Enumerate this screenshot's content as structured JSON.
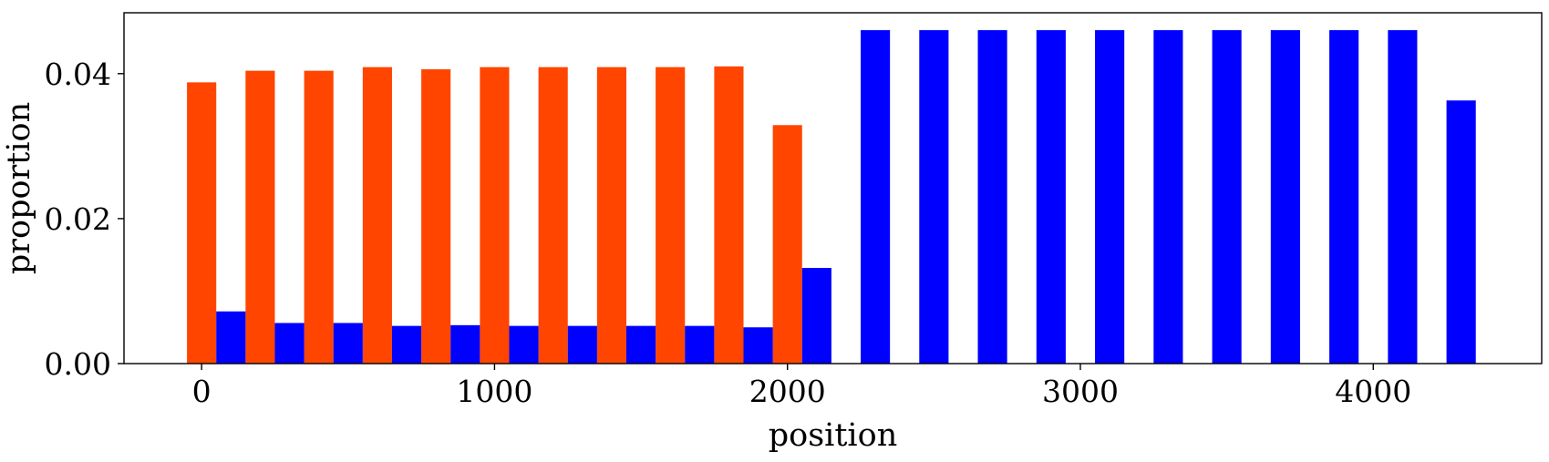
{
  "chart_data": {
    "type": "bar",
    "xlabel": "position",
    "ylabel": "proportion",
    "title": "",
    "xlim": [
      -265,
      4575
    ],
    "ylim": [
      0,
      0.0484
    ],
    "xticks": [
      0,
      1000,
      2000,
      3000,
      4000
    ],
    "xtick_labels": [
      "0",
      "1000",
      "2000",
      "3000",
      "4000"
    ],
    "yticks": [
      0,
      0.02,
      0.04
    ],
    "ytick_labels": [
      "0.00",
      "0.02",
      "0.04"
    ],
    "grid": false,
    "legend": "none",
    "bar_width": 100,
    "series": [
      {
        "color": "#ff4500",
        "x": [
          0,
          200,
          400,
          600,
          800,
          1000,
          1200,
          1400,
          1600,
          1800,
          2000
        ],
        "values": [
          0.0388,
          0.0404,
          0.0404,
          0.0409,
          0.0406,
          0.0409,
          0.0409,
          0.0409,
          0.0409,
          0.041,
          0.0329
        ]
      },
      {
        "color": "#0000ff",
        "x": [
          100,
          300,
          500,
          700,
          900,
          1100,
          1300,
          1500,
          1700,
          1900,
          2100,
          2300,
          2500,
          2700,
          2900,
          3100,
          3300,
          3500,
          3700,
          3900,
          4100,
          4300
        ],
        "values": [
          0.0072,
          0.0056,
          0.0056,
          0.0052,
          0.0053,
          0.0052,
          0.0052,
          0.0052,
          0.0052,
          0.005,
          0.0132,
          0.046,
          0.046,
          0.046,
          0.046,
          0.046,
          0.046,
          0.046,
          0.046,
          0.046,
          0.046,
          0.0363
        ]
      }
    ]
  }
}
